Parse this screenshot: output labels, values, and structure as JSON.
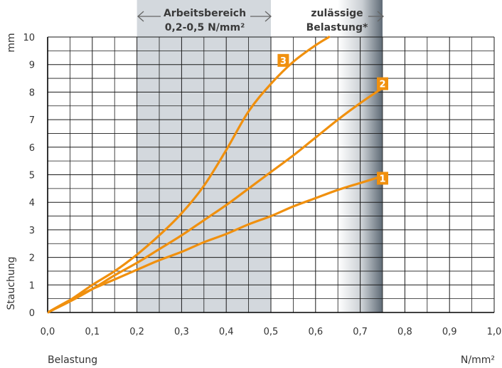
{
  "chart_data": {
    "type": "line",
    "y_unit": "mm",
    "x_unit": "N/mm²",
    "xlabel": "Belastung",
    "ylabel": "Stauchung",
    "xlim": [
      0,
      1.0
    ],
    "ylim": [
      0,
      10
    ],
    "x_ticks": [
      "0,0",
      "0,1",
      "0,2",
      "0,3",
      "0,4",
      "0,5",
      "0,6",
      "0,7",
      "0,8",
      "0,9",
      "1,0"
    ],
    "y_ticks": [
      "0",
      "1",
      "2",
      "3",
      "4",
      "5",
      "6",
      "7",
      "8",
      "9",
      "10"
    ],
    "grid": true,
    "regions": [
      {
        "label_line1": "Arbeitsbereich",
        "label_line2": "0,2-0,5 N/mm²",
        "x_range": [
          0.2,
          0.5
        ],
        "color": "#d3d8dd"
      },
      {
        "label_line1": "zulässige",
        "label_line2": "Belastung*",
        "x_range": [
          0.65,
          0.75
        ],
        "style": "gradient"
      }
    ],
    "series": [
      {
        "name": "1",
        "x": [
          0,
          0.05,
          0.1,
          0.15,
          0.2,
          0.25,
          0.3,
          0.35,
          0.4,
          0.45,
          0.5,
          0.55,
          0.6,
          0.65,
          0.7,
          0.75
        ],
        "y": [
          0,
          0.45,
          0.85,
          1.2,
          1.55,
          1.9,
          2.2,
          2.55,
          2.85,
          3.2,
          3.5,
          3.85,
          4.15,
          4.45,
          4.7,
          4.95
        ]
      },
      {
        "name": "2",
        "x": [
          0,
          0.05,
          0.1,
          0.15,
          0.2,
          0.25,
          0.3,
          0.35,
          0.4,
          0.45,
          0.5,
          0.55,
          0.6,
          0.65,
          0.7,
          0.75
        ],
        "y": [
          0,
          0.4,
          0.85,
          1.35,
          1.8,
          2.3,
          2.8,
          3.35,
          3.9,
          4.5,
          5.1,
          5.7,
          6.35,
          7.0,
          7.6,
          8.15
        ]
      },
      {
        "name": "3",
        "x": [
          0,
          0.05,
          0.1,
          0.15,
          0.2,
          0.25,
          0.3,
          0.35,
          0.4,
          0.45,
          0.5,
          0.55,
          0.6,
          0.63
        ],
        "y": [
          0,
          0.45,
          1.0,
          1.5,
          2.1,
          2.8,
          3.6,
          4.6,
          5.9,
          7.3,
          8.3,
          9.1,
          9.7,
          10.0
        ]
      }
    ],
    "colors": {
      "curve": "#f0900e",
      "grid": "#1a1a1a",
      "band_working": "#d3d8dd",
      "band_permissible_dark": "#6a7580",
      "label_box": "#f0900e"
    }
  }
}
